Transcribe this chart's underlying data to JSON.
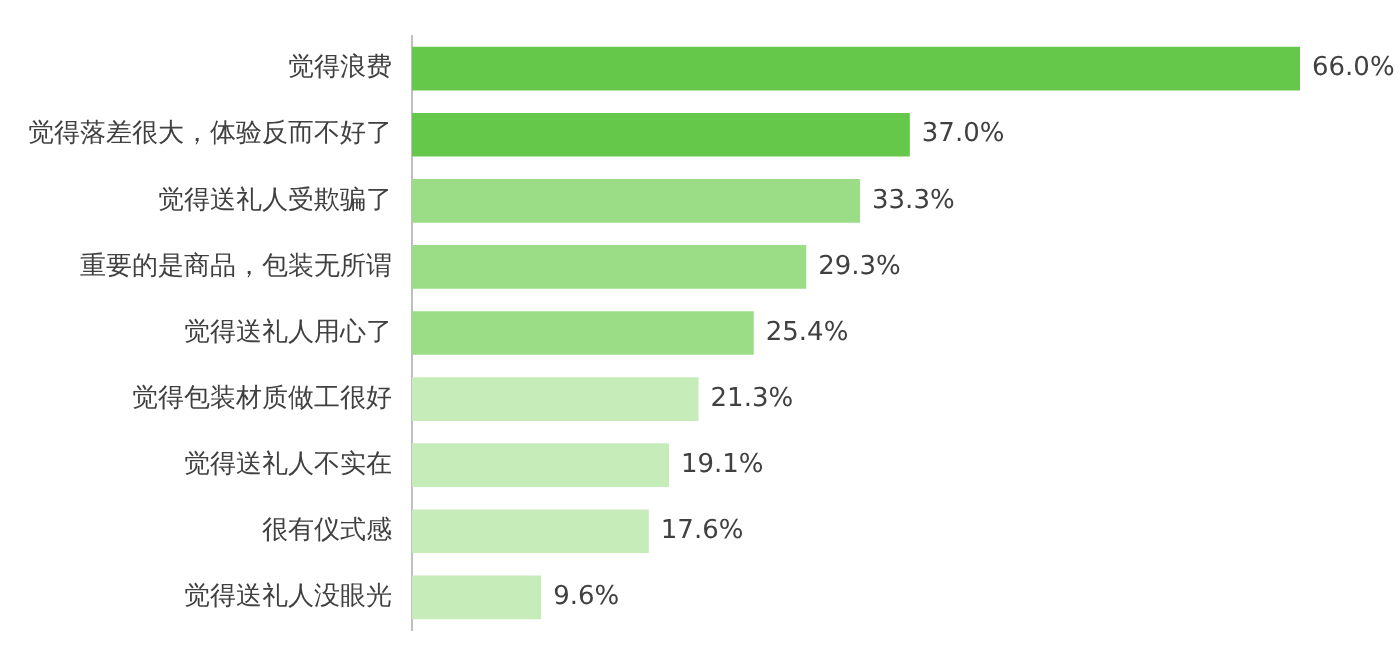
{
  "chart_data": {
    "type": "bar",
    "orientation": "horizontal",
    "categories": [
      "觉得浪费",
      "觉得落差很大，体验反而不好了",
      "觉得送礼人受欺骗了",
      "重要的是商品，包装无所谓",
      "觉得送礼人用心了",
      "觉得包装材质做工很好",
      "觉得送礼人不实在",
      "很有仪式感",
      "觉得送礼人没眼光"
    ],
    "values": [
      66.0,
      37.0,
      33.3,
      29.3,
      25.4,
      21.3,
      19.1,
      17.6,
      9.6
    ],
    "value_labels": [
      "66.0%",
      "37.0%",
      "33.3%",
      "29.3%",
      "25.4%",
      "21.3%",
      "19.1%",
      "17.6%",
      "9.6%"
    ],
    "colors": [
      "#66c84a",
      "#66c84a",
      "#9bdc87",
      "#9bdc87",
      "#9bdc87",
      "#c6ecb9",
      "#c6ecb9",
      "#c6ecb9",
      "#c6ecb9"
    ],
    "legend": false
  }
}
